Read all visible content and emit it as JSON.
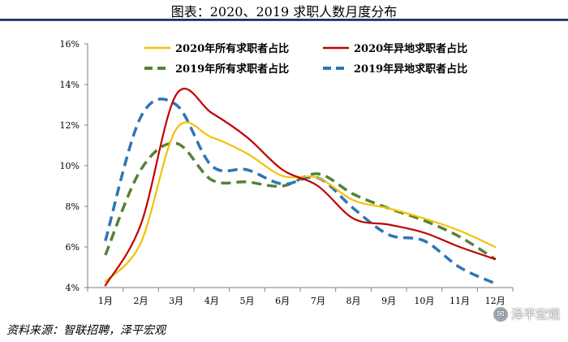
{
  "header": {
    "title": "图表：2020、2019 求职人数月度分布"
  },
  "chart_data": {
    "type": "line",
    "title": "图表：2020、2019 求职人数月度分布",
    "xlabel": "",
    "ylabel": "",
    "categories": [
      "1月",
      "2月",
      "3月",
      "4月",
      "5月",
      "6月",
      "7月",
      "8月",
      "9月",
      "10月",
      "11月",
      "12月"
    ],
    "y_ticks": [
      "4%",
      "6%",
      "8%",
      "10%",
      "12%",
      "14%",
      "16%"
    ],
    "ylim": [
      4,
      16
    ],
    "grid": false,
    "legend_position": "top-right",
    "series": [
      {
        "name": "2020年所有求职者占比",
        "color": "#f5c000",
        "style": "solid",
        "values": [
          4.3,
          6.2,
          11.8,
          11.4,
          10.6,
          9.5,
          9.4,
          8.3,
          7.9,
          7.4,
          6.8,
          6.0
        ]
      },
      {
        "name": "2020年异地求职者占比",
        "color": "#c00000",
        "style": "solid",
        "values": [
          4.1,
          7.1,
          13.5,
          12.6,
          11.4,
          9.8,
          9.0,
          7.4,
          7.1,
          6.7,
          6.0,
          5.4
        ]
      },
      {
        "name": "2019年所有求职者占比",
        "color": "#548235",
        "style": "dashed",
        "values": [
          5.6,
          9.8,
          11.1,
          9.3,
          9.2,
          9.0,
          9.6,
          8.6,
          7.9,
          7.3,
          6.5,
          5.4
        ]
      },
      {
        "name": "2019年异地求职者占比",
        "color": "#2e75b6",
        "style": "dashed",
        "values": [
          6.3,
          12.4,
          13.0,
          10.0,
          9.8,
          9.1,
          9.4,
          7.9,
          6.6,
          6.3,
          5.0,
          4.2
        ]
      }
    ]
  },
  "footer": {
    "source": "资料来源：智联招聘，泽平宏观",
    "watermark": "泽平宏观",
    "watermark_icon": "wechat-icon"
  }
}
